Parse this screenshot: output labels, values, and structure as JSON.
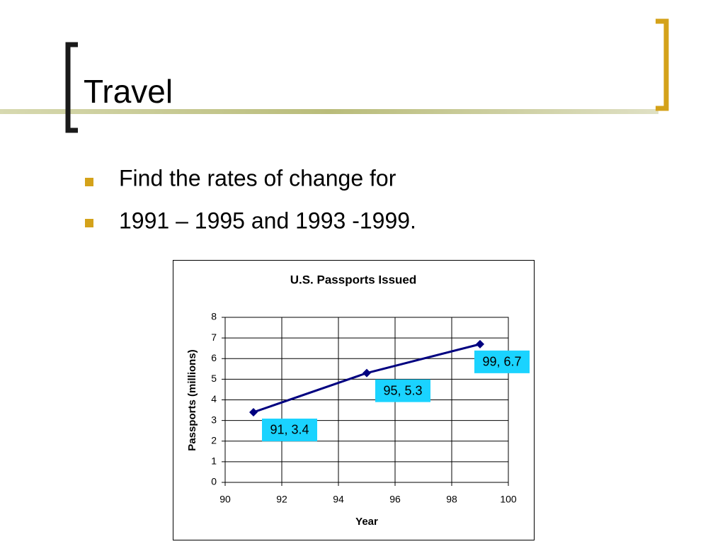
{
  "slide": {
    "title": "Travel",
    "bullets": [
      "Find the rates of change for",
      "1991 – 1995 and 1993 -1999."
    ]
  },
  "chart_data": {
    "type": "line",
    "title": "U.S. Passports Issued",
    "x_label": "Year",
    "y_label": "Passports (millions)",
    "series": [
      {
        "name": "Passports",
        "color": "#000080",
        "x": [
          91,
          95,
          99
        ],
        "values": [
          3.4,
          5.3,
          6.7
        ],
        "value_labels": [
          "91, 3.4",
          "95, 5.3",
          "99, 6.7"
        ]
      }
    ],
    "xlim": [
      90,
      100
    ],
    "xticks": [
      90,
      92,
      94,
      96,
      98,
      100
    ],
    "ylim": [
      0,
      8
    ],
    "yticks": [
      0,
      1,
      2,
      3,
      4,
      5,
      6,
      7,
      8
    ],
    "grid": true,
    "label_color": "#1ad3ff"
  }
}
